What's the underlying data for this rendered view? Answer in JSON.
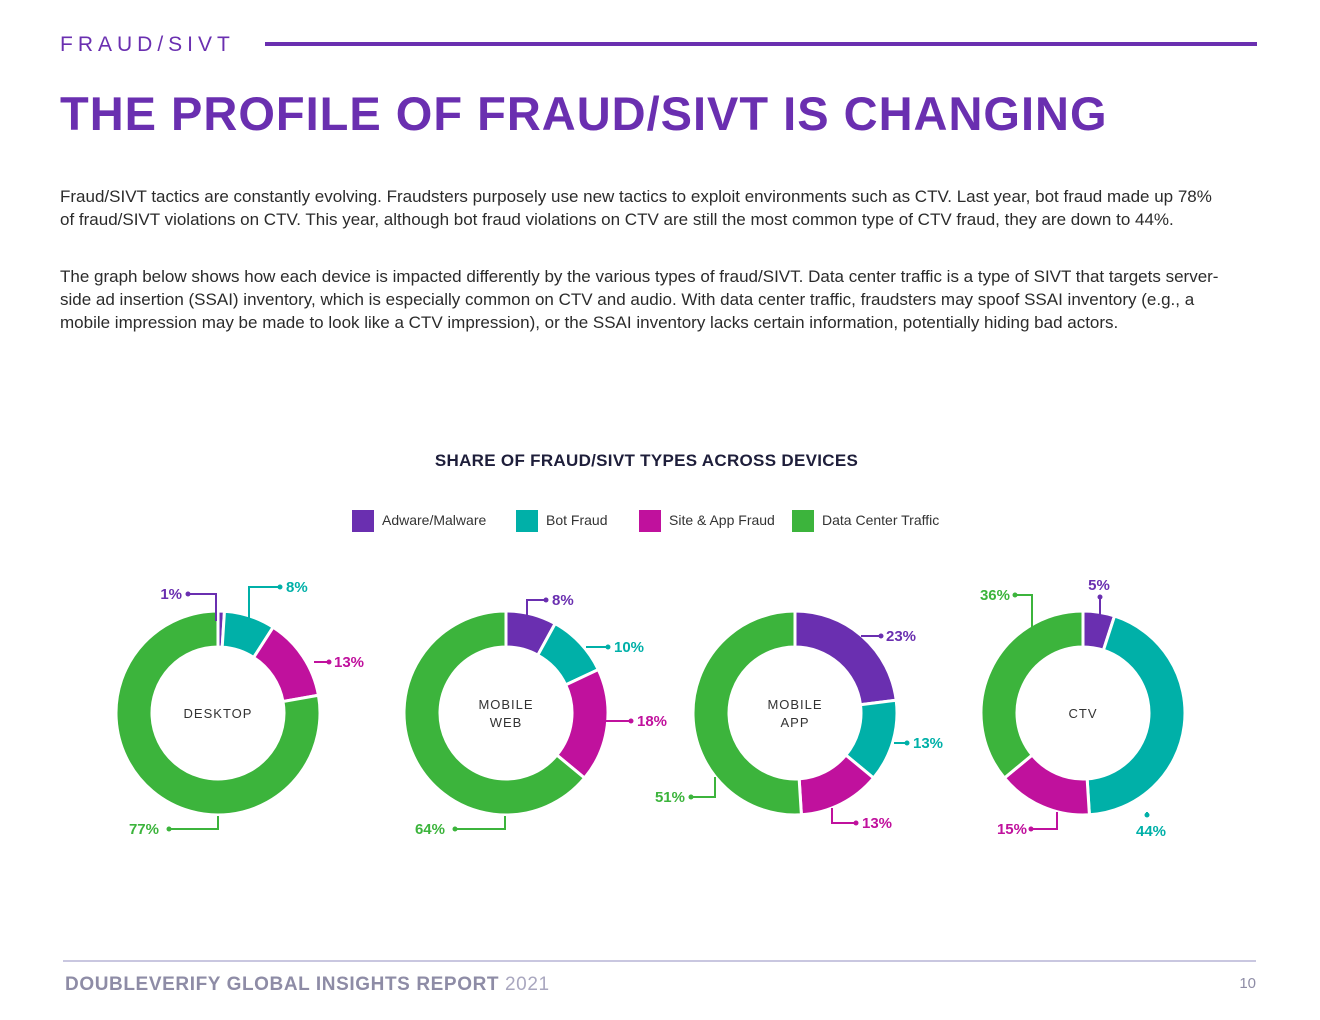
{
  "header": {
    "section": "FRAUD/SIVT",
    "title": "THE PROFILE OF FRAUD/SIVT IS CHANGING",
    "accent_color": "#6a2fb0"
  },
  "body": {
    "paragraph1": "Fraud/SIVT tactics are constantly evolving. Fraudsters purposely use new tactics to exploit environments such as CTV. Last year, bot fraud made up 78% of fraud/SIVT violations on CTV. This year, although bot fraud violations on CTV are still the most common type of CTV fraud, they are down to 44%.",
    "paragraph2": "The graph below shows how each device is impacted differently by the various types of fraud/SIVT. Data center traffic is a type of SIVT that targets server-side ad insertion (SSAI) inventory, which is especially common on CTV and audio. With data center traffic, fraudsters may spoof SSAI inventory (e.g., a mobile impression may be made to look like a CTV impression), or the SSAI inventory lacks certain information, potentially hiding bad actors."
  },
  "chart_data": {
    "type": "donut",
    "title": "SHARE OF FRAUD/SIVT TYPES ACROSS DEVICES",
    "legend_position": "top-center",
    "categories": [
      "Adware/Malware",
      "Bot Fraud",
      "Site & App Fraud",
      "Data Center Traffic"
    ],
    "colors": [
      "#6a2fb0",
      "#00b0a8",
      "#c0119d",
      "#3cb43c"
    ],
    "charts": [
      {
        "name": "DESKTOP",
        "values": [
          1,
          8,
          13,
          77
        ],
        "labels": [
          "1%",
          "8%",
          "13%",
          "77%"
        ]
      },
      {
        "name": "MOBILE WEB",
        "values": [
          8,
          10,
          18,
          64
        ],
        "labels": [
          "8%",
          "10%",
          "18%",
          "64%"
        ]
      },
      {
        "name": "MOBILE APP",
        "values": [
          23,
          13,
          13,
          51
        ],
        "labels": [
          "23%",
          "13%",
          "13%",
          "51%"
        ]
      },
      {
        "name": "CTV",
        "values": [
          5,
          44,
          15,
          36
        ],
        "labels": [
          "5%",
          "44%",
          "15%",
          "36%"
        ]
      }
    ]
  },
  "footer": {
    "brand": "DOUBLEVERIFY GLOBAL INSIGHTS REPORT",
    "year": "2021",
    "page_number": "10"
  }
}
